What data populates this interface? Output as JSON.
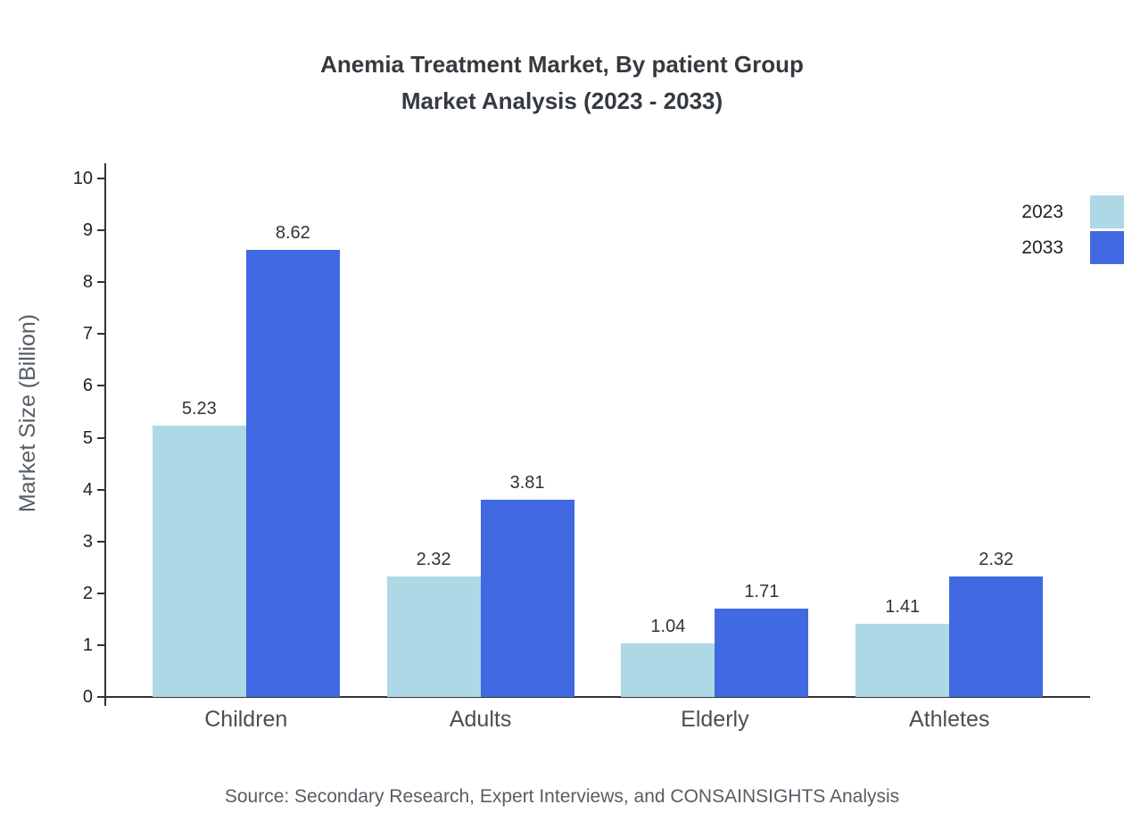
{
  "chart_data": {
    "type": "bar",
    "title": "Anemia Treatment Market, By patient Group",
    "subtitle": "Market Analysis (2023 - 2033)",
    "ylabel": "Market Size (Billion)",
    "xlabel": "",
    "categories": [
      "Children",
      "Adults",
      "Elderly",
      "Athletes"
    ],
    "series": [
      {
        "name": "2023",
        "color": "#add8e6",
        "values": [
          5.23,
          2.32,
          1.04,
          1.41
        ]
      },
      {
        "name": "2033",
        "color": "#4169e1",
        "values": [
          8.62,
          3.81,
          1.71,
          2.32
        ]
      }
    ],
    "ylim": [
      0,
      10
    ],
    "yticks": [
      0,
      1,
      2,
      3,
      4,
      5,
      6,
      7,
      8,
      9,
      10
    ],
    "grid": false,
    "legend_position": "top-right",
    "source": "Source: Secondary Research, Expert Interviews, and CONSAINSIGHTS Analysis"
  }
}
